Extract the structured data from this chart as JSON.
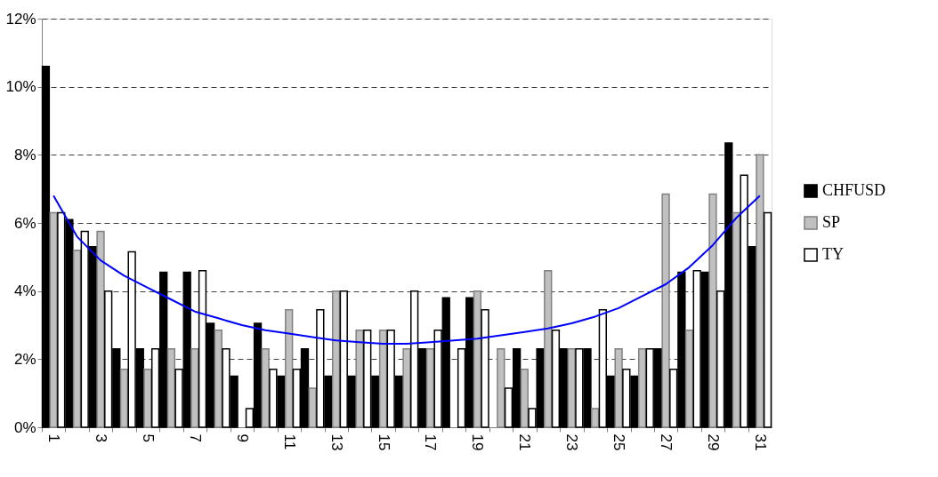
{
  "chart_data": {
    "type": "bar",
    "categories": [
      "1",
      null,
      "3",
      null,
      "5",
      null,
      "7",
      null,
      "9",
      null,
      "11",
      null,
      "13",
      null,
      "15",
      null,
      "17",
      null,
      "19",
      null,
      "21",
      null,
      "23",
      null,
      "25",
      null,
      "27",
      null,
      "29",
      null,
      "31"
    ],
    "series": [
      {
        "name": "CHFUSD",
        "color": "#000000",
        "values": [
          10.6,
          6.1,
          5.3,
          2.3,
          2.3,
          4.55,
          4.55,
          3.05,
          1.5,
          3.05,
          1.5,
          2.3,
          1.5,
          1.5,
          1.5,
          1.5,
          2.3,
          3.8,
          3.8,
          0,
          2.3,
          2.3,
          2.3,
          2.3,
          1.5,
          1.5,
          2.3,
          4.55,
          4.55,
          8.35,
          5.3
        ]
      },
      {
        "name": "SP",
        "color": "#c0c0c0",
        "values": [
          6.3,
          5.2,
          5.75,
          1.7,
          1.7,
          2.3,
          2.3,
          2.85,
          0,
          2.3,
          3.45,
          1.15,
          4.0,
          2.85,
          2.85,
          2.3,
          2.3,
          0,
          4.0,
          2.3,
          1.7,
          4.6,
          2.3,
          0.55,
          2.3,
          2.3,
          6.85,
          2.85,
          6.85,
          6.3,
          8.0
        ]
      },
      {
        "name": "TY",
        "color": "#ffffff",
        "values": [
          6.3,
          5.75,
          4.0,
          5.15,
          2.3,
          1.7,
          4.6,
          2.3,
          0.55,
          1.7,
          1.7,
          3.45,
          4.0,
          2.85,
          2.85,
          4.0,
          2.85,
          2.3,
          3.45,
          1.15,
          0.55,
          2.85,
          2.3,
          3.45,
          1.7,
          2.3,
          1.7,
          4.6,
          4.0,
          7.4,
          6.3
        ]
      },
      {
        "type": "line",
        "color": "#0000ff",
        "values": [
          6.8,
          5.6,
          4.9,
          4.45,
          4.1,
          3.75,
          3.4,
          3.2,
          3.0,
          2.85,
          2.75,
          2.65,
          2.55,
          2.5,
          2.45,
          2.45,
          2.5,
          2.55,
          2.6,
          2.7,
          2.8,
          2.9,
          3.05,
          3.25,
          3.5,
          3.85,
          4.2,
          4.7,
          5.35,
          6.15,
          6.8
        ]
      }
    ],
    "ylim": [
      0,
      12
    ],
    "yticks": [
      {
        "value": 0,
        "label": "0%"
      },
      {
        "value": 2,
        "label": "2%"
      },
      {
        "value": 4,
        "label": "4%"
      },
      {
        "value": 6,
        "label": "6%"
      },
      {
        "value": 8,
        "label": "8%"
      },
      {
        "value": 10,
        "label": "10%"
      },
      {
        "value": 12,
        "label": "12%"
      }
    ],
    "grid": "y",
    "legend": "right",
    "line_style": "solid",
    "marker": "none"
  }
}
